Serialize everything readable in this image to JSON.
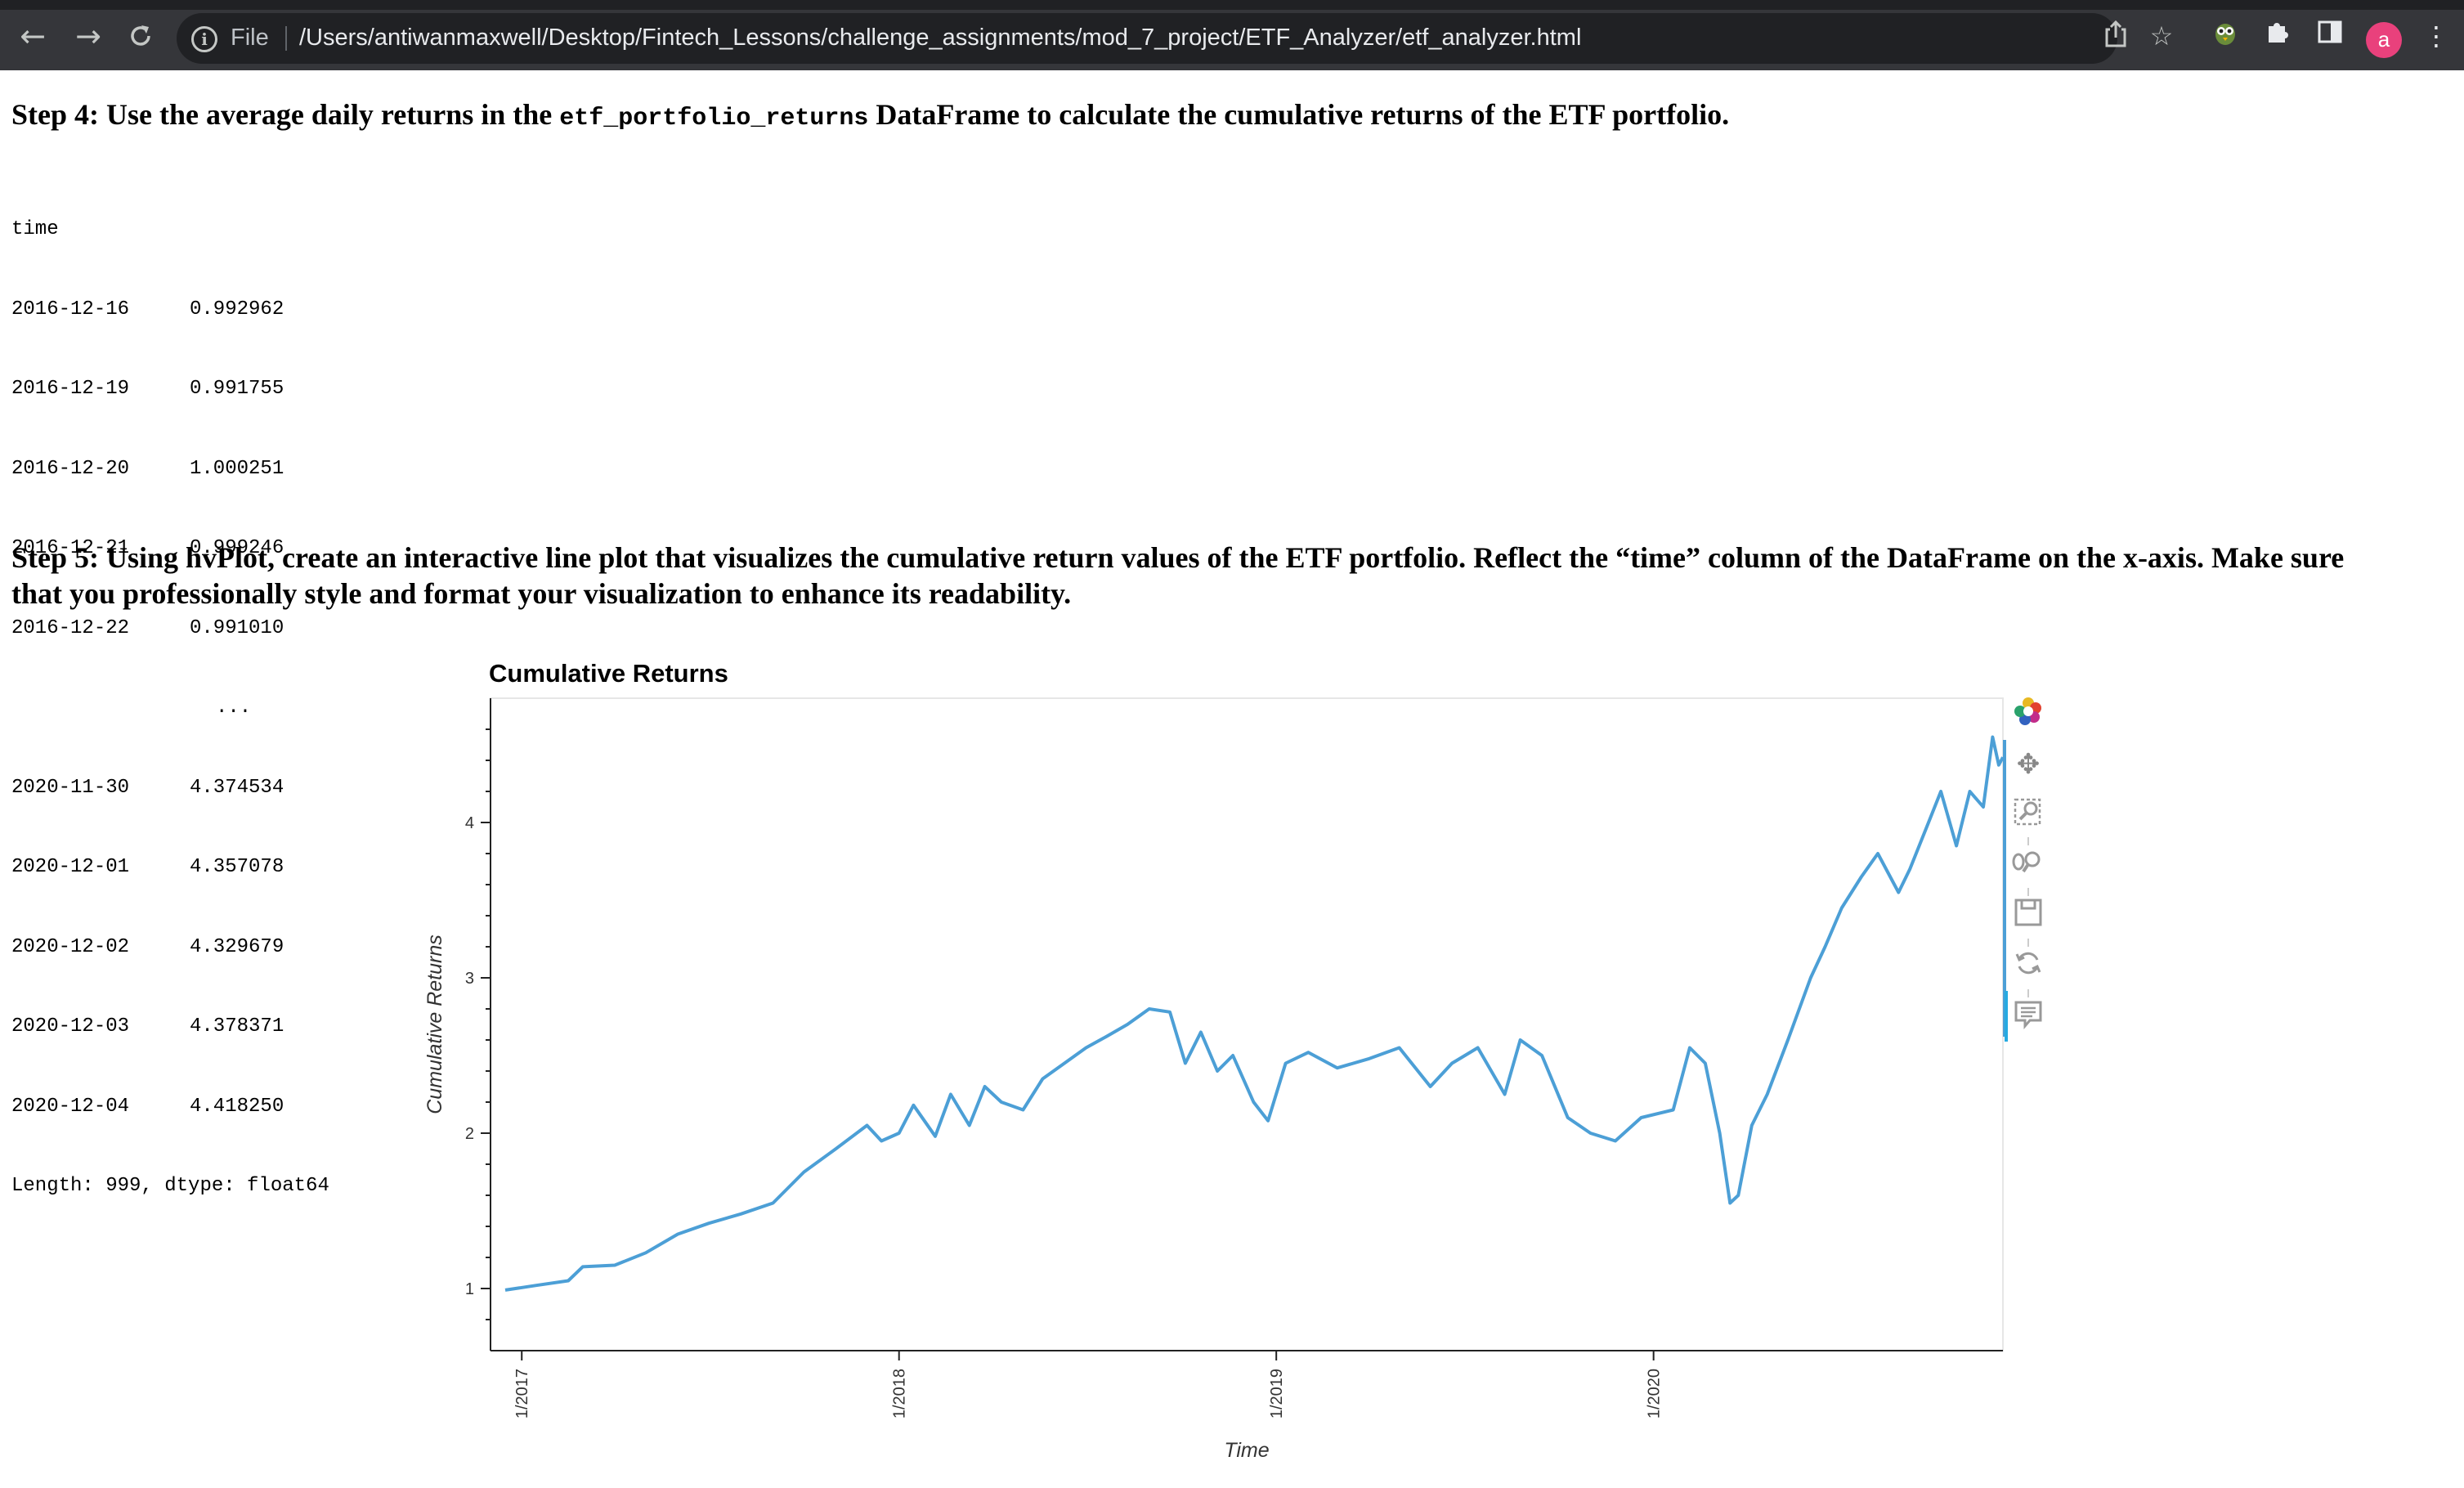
{
  "browser": {
    "file_label": "File",
    "url": "/Users/antiwanmaxwell/Desktop/Fintech_Lessons/challenge_assignments/mod_7_project/ETF_Analyzer/etf_analyzer.html",
    "avatar_letter": "a",
    "icons": [
      "back-icon",
      "forward-icon",
      "reload-icon",
      "info-icon",
      "share-icon",
      "star-icon",
      "extension-owl-icon",
      "puzzle-icon",
      "side-panel-icon",
      "more-icon"
    ]
  },
  "step4": {
    "prefix": "Step 4: Use the average daily returns in the ",
    "code": "etf_portfolio_returns",
    "suffix": " DataFrame to calculate the cumulative returns of the ETF portfolio."
  },
  "output": {
    "index_name": "time",
    "rows": [
      {
        "date": "2016-12-16",
        "value": "0.992962"
      },
      {
        "date": "2016-12-19",
        "value": "0.991755"
      },
      {
        "date": "2016-12-20",
        "value": "1.000251"
      },
      {
        "date": "2016-12-21",
        "value": "0.999246"
      },
      {
        "date": "2016-12-22",
        "value": "0.991010"
      }
    ],
    "ellipsis": "...",
    "rows_tail": [
      {
        "date": "2020-11-30",
        "value": "4.374534"
      },
      {
        "date": "2020-12-01",
        "value": "4.357078"
      },
      {
        "date": "2020-12-02",
        "value": "4.329679"
      },
      {
        "date": "2020-12-03",
        "value": "4.378371"
      },
      {
        "date": "2020-12-04",
        "value": "4.418250"
      }
    ],
    "footer": "Length: 999, dtype: float64"
  },
  "step5": {
    "line1": "Step 5: Using hvPlot, create an interactive line plot that visualizes the cumulative return values of the ETF portfolio. Reflect the “time” column of the DataFrame on the x-axis. Make sure",
    "line2": "that you professionally style and format your visualization to enhance its readability."
  },
  "toolbar": {
    "tools": [
      "bokeh-logo-icon",
      "pan-icon",
      "box-zoom-icon",
      "wheel-zoom-icon",
      "save-icon",
      "reset-icon",
      "hover-icon"
    ],
    "active_tool": "hover-icon"
  },
  "chart_data": {
    "type": "line",
    "title": "Cumulative Returns",
    "xlabel": "Time",
    "ylabel": "Cumulative Returns",
    "line_color": "#4c9fd6",
    "x_ticks": [
      "1/2017",
      "1/2018",
      "1/2019",
      "1/2020"
    ],
    "y_ticks": [
      1,
      2,
      3,
      4
    ],
    "xlim": [
      "2016-12-16",
      "2020-12-04"
    ],
    "ylim": [
      0.6,
      4.8
    ],
    "series": [
      {
        "x": [
          "2016-12-16",
          "2017-01-15",
          "2017-02-15",
          "2017-03-01",
          "2017-04-01",
          "2017-05-01",
          "2017-06-01",
          "2017-07-01",
          "2017-08-01",
          "2017-09-01",
          "2017-10-01",
          "2017-11-01",
          "2017-12-01",
          "2017-12-15",
          "2018-01-01",
          "2018-01-15",
          "2018-02-05",
          "2018-02-20",
          "2018-03-10",
          "2018-03-25",
          "2018-04-10",
          "2018-05-01",
          "2018-05-20",
          "2018-06-10",
          "2018-07-01",
          "2018-07-20",
          "2018-08-10",
          "2018-08-31",
          "2018-09-20",
          "2018-10-05",
          "2018-10-20",
          "2018-11-05",
          "2018-11-20",
          "2018-12-10",
          "2018-12-24",
          "2019-01-10",
          "2019-02-01",
          "2019-03-01",
          "2019-04-01",
          "2019-04-30",
          "2019-05-30",
          "2019-06-20",
          "2019-07-15",
          "2019-08-10",
          "2019-08-25",
          "2019-09-15",
          "2019-10-10",
          "2019-11-01",
          "2019-11-25",
          "2019-12-20",
          "2020-01-20",
          "2020-02-05",
          "2020-02-20",
          "2020-03-05",
          "2020-03-15",
          "2020-03-23",
          "2020-04-05",
          "2020-04-20",
          "2020-05-10",
          "2020-06-01",
          "2020-06-15",
          "2020-07-01",
          "2020-07-20",
          "2020-08-05",
          "2020-08-25",
          "2020-09-05",
          "2020-09-23",
          "2020-10-05",
          "2020-10-20",
          "2020-11-02",
          "2020-11-15",
          "2020-11-24",
          "2020-11-30",
          "2020-12-04"
        ],
        "y": [
          0.99,
          1.02,
          1.05,
          1.14,
          1.15,
          1.23,
          1.35,
          1.42,
          1.48,
          1.55,
          1.75,
          1.9,
          2.05,
          1.95,
          2.0,
          2.18,
          1.98,
          2.25,
          2.05,
          2.3,
          2.2,
          2.15,
          2.35,
          2.45,
          2.55,
          2.62,
          2.7,
          2.8,
          2.78,
          2.45,
          2.65,
          2.4,
          2.5,
          2.2,
          2.08,
          2.45,
          2.52,
          2.42,
          2.48,
          2.55,
          2.3,
          2.45,
          2.55,
          2.25,
          2.6,
          2.5,
          2.1,
          2.0,
          1.95,
          2.1,
          2.15,
          2.55,
          2.45,
          2.0,
          1.55,
          1.6,
          2.05,
          2.25,
          2.6,
          3.0,
          3.2,
          3.45,
          3.65,
          3.8,
          3.55,
          3.7,
          4.0,
          4.2,
          3.85,
          4.2,
          4.1,
          4.55,
          4.37,
          4.42
        ]
      }
    ]
  }
}
